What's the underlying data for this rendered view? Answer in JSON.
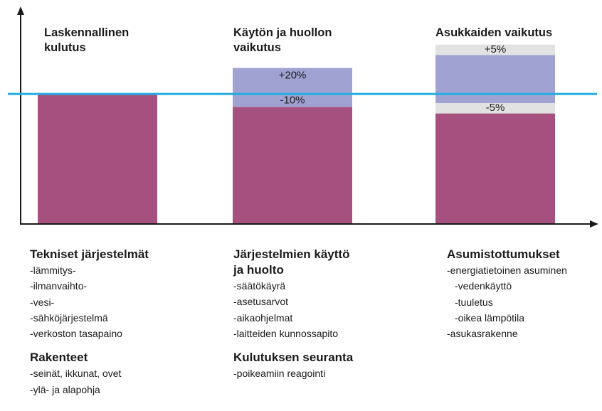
{
  "colors": {
    "bar_base": "#a6507f",
    "bar_increase": "#a0a3d2",
    "bar_band": "#e2e2e2",
    "reference_line": "#27ace2",
    "axis": "#1a1a1a"
  },
  "chart_data": {
    "type": "bar",
    "stacked": true,
    "grid": false,
    "legend": "none",
    "categories": [
      "Laskennallinen kulutus",
      "Käytön ja huollon vaikutus",
      "Asukkaiden vaikutus"
    ],
    "category_titles": [
      [
        "Laskennallinen",
        "kulutus"
      ],
      [
        "Käytön ja huollon",
        "vaikutus"
      ],
      [
        "Asukkaiden vaikutus"
      ]
    ],
    "reference_value": 100,
    "ylim": [
      0,
      140
    ],
    "bars": [
      {
        "segments": [
          {
            "role": "base",
            "value": 100
          }
        ]
      },
      {
        "segments": [
          {
            "role": "base",
            "value": 90
          },
          {
            "role": "increase",
            "value": 30
          }
        ],
        "labels": [
          {
            "text": "+20%",
            "at": 114
          },
          {
            "text": "-10%",
            "at": 95
          }
        ]
      },
      {
        "segments": [
          {
            "role": "base",
            "value": 85
          },
          {
            "role": "band",
            "value": 8
          },
          {
            "role": "increase",
            "value": 37
          },
          {
            "role": "band",
            "value": 8
          }
        ],
        "labels": [
          {
            "text": "+5%",
            "at": 134
          },
          {
            "text": "-5%",
            "at": 89
          }
        ]
      }
    ],
    "xlabel": "",
    "ylabel": ""
  },
  "columns": [
    {
      "groups": [
        {
          "heading": [
            "Tekniset järjestelmät"
          ],
          "items": [
            {
              "text": "-lämmitys-",
              "indent": false
            },
            {
              "text": "-ilmanvaihto-",
              "indent": false
            },
            {
              "text": "-vesi-",
              "indent": false
            },
            {
              "text": "-sähköjärjestelmä",
              "indent": false
            },
            {
              "text": "-verkoston tasapaino",
              "indent": false
            }
          ]
        },
        {
          "heading": [
            "Rakenteet"
          ],
          "items": [
            {
              "text": "-seinät, ikkunat, ovet",
              "indent": false
            },
            {
              "text": "-ylä- ja alapohja",
              "indent": false
            }
          ]
        }
      ]
    },
    {
      "groups": [
        {
          "heading": [
            "Järjestelmien käyttö",
            "ja huolto"
          ],
          "items": [
            {
              "text": "-säätökäyrä",
              "indent": false
            },
            {
              "text": "-asetusarvot",
              "indent": false
            },
            {
              "text": "-aikaohjelmat",
              "indent": false
            },
            {
              "text": "-laitteiden kunnossapito",
              "indent": false
            }
          ]
        },
        {
          "heading": [
            "Kulutuksen seuranta"
          ],
          "items": [
            {
              "text": "-poikeamiin reagointi",
              "indent": false
            }
          ]
        }
      ]
    },
    {
      "groups": [
        {
          "heading": [
            "Asumistottumukset"
          ],
          "items": [
            {
              "text": "-energiatietoinen asuminen",
              "indent": false
            },
            {
              "text": "-vedenkäyttö",
              "indent": true
            },
            {
              "text": "-tuuletus",
              "indent": true
            },
            {
              "text": "-oikea lämpötila",
              "indent": true
            },
            {
              "text": "-asukasrakenne",
              "indent": false
            }
          ]
        }
      ]
    }
  ]
}
